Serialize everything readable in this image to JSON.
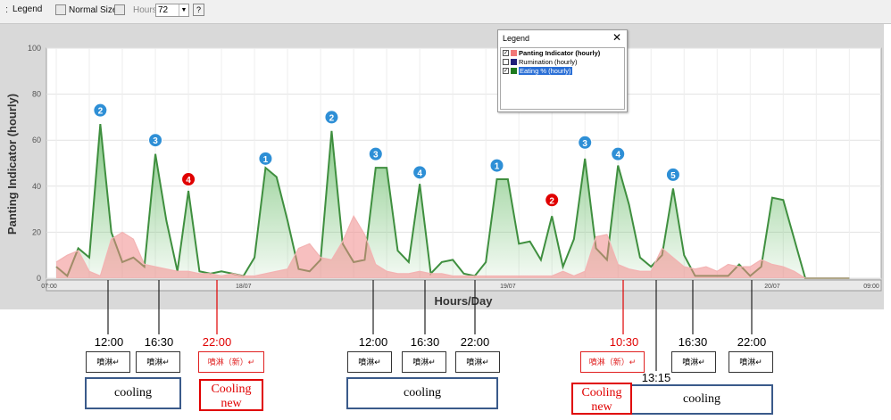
{
  "toolbar": {
    "grip": ":",
    "legend_label": "Legend",
    "normal_size_label": "Normal Size",
    "hours_label": "Hours",
    "hours_value": "72",
    "help_label": "?"
  },
  "legend": {
    "title": "Legend",
    "close": "✕",
    "items": [
      {
        "label": "Panting Indicator (hourly)",
        "checked": true,
        "color": "#f07878"
      },
      {
        "label": "Rumination (hourly)",
        "checked": false,
        "color": "#1f1f7a"
      },
      {
        "label": "Eating % (hourly)",
        "checked": true,
        "color": "#1f7a1f"
      }
    ]
  },
  "colors": {
    "green_line": "#3f8f3f",
    "green_fill": "#6fbf6f",
    "red_fill": "#f08a8a",
    "red_line": "#f3b3b3",
    "marker_blue": "#2e8fd6",
    "marker_red": "#e00000"
  },
  "chart_data": {
    "type": "area",
    "ylabel": "Panting Indicator (hourly)",
    "xlabel": "Hours/Day",
    "ylim": [
      0,
      100
    ],
    "yticks": [
      0,
      20,
      40,
      60,
      80,
      100
    ],
    "xticks": [
      {
        "hour": 0,
        "label": "07:00"
      },
      {
        "hour": 17,
        "label": "18/07"
      },
      {
        "hour": 41,
        "label": "19/07"
      },
      {
        "hour": 65,
        "label": "20/07"
      },
      {
        "hour": 74,
        "label": "09:00"
      }
    ],
    "x": [
      0,
      1,
      2,
      3,
      4,
      5,
      6,
      7,
      8,
      9,
      10,
      11,
      12,
      13,
      14,
      15,
      16,
      17,
      18,
      19,
      20,
      21,
      22,
      23,
      24,
      25,
      26,
      27,
      28,
      29,
      30,
      31,
      32,
      33,
      34,
      35,
      36,
      37,
      38,
      39,
      40,
      41,
      42,
      43,
      44,
      45,
      46,
      47,
      48,
      49,
      50,
      51,
      52,
      53,
      54,
      55,
      56,
      57,
      58,
      59,
      60,
      61,
      62,
      63,
      64,
      65,
      66,
      67,
      68,
      69,
      70,
      71,
      72
    ],
    "series": [
      {
        "name": "Eating % (hourly)",
        "values": [
          5,
          1,
          13,
          9,
          67,
          20,
          7,
          9,
          5,
          54,
          25,
          3,
          38,
          3,
          2,
          3,
          2,
          1,
          9,
          48,
          44,
          25,
          4,
          3,
          8,
          64,
          15,
          7,
          8,
          48,
          48,
          12,
          7,
          41,
          2,
          7,
          8,
          2,
          1,
          7,
          43,
          43,
          15,
          16,
          8,
          27,
          5,
          17,
          52,
          13,
          8,
          49,
          32,
          9,
          5,
          10,
          39,
          10,
          1,
          1,
          1,
          1,
          6,
          1,
          5,
          35,
          34,
          17,
          0,
          0,
          0,
          0,
          0
        ]
      },
      {
        "name": "Panting Indicator (hourly)",
        "values": [
          7,
          10,
          12,
          3,
          1,
          17,
          20,
          17,
          6,
          5,
          4,
          3,
          3,
          2,
          2,
          1,
          2,
          1,
          1,
          2,
          3,
          4,
          13,
          15,
          9,
          8,
          16,
          27,
          19,
          6,
          3,
          2,
          2,
          3,
          2,
          2,
          1,
          1,
          1,
          1,
          1,
          1,
          1,
          1,
          1,
          1,
          3,
          1,
          3,
          18,
          19,
          6,
          4,
          3,
          3,
          13,
          9,
          5,
          4,
          5,
          3,
          6,
          5,
          5,
          8,
          6,
          5,
          3,
          0,
          0,
          0,
          0,
          0
        ]
      }
    ],
    "markers": [
      {
        "hour": 4,
        "value": 73,
        "label": "2",
        "color": "blue"
      },
      {
        "hour": 9,
        "value": 60,
        "label": "3",
        "color": "blue"
      },
      {
        "hour": 12,
        "value": 43,
        "label": "4",
        "color": "red"
      },
      {
        "hour": 19,
        "value": 52,
        "label": "1",
        "color": "blue"
      },
      {
        "hour": 25,
        "value": 70,
        "label": "2",
        "color": "blue"
      },
      {
        "hour": 29,
        "value": 54,
        "label": "3",
        "color": "blue"
      },
      {
        "hour": 33,
        "value": 46,
        "label": "4",
        "color": "blue"
      },
      {
        "hour": 40,
        "value": 49,
        "label": "1",
        "color": "blue"
      },
      {
        "hour": 45,
        "value": 34,
        "label": "2",
        "color": "red"
      },
      {
        "hour": 48,
        "value": 59,
        "label": "3",
        "color": "blue"
      },
      {
        "hour": 51,
        "value": 54,
        "label": "4",
        "color": "blue"
      },
      {
        "hour": 56,
        "value": 45,
        "label": "5",
        "color": "blue"
      }
    ]
  },
  "annotations": {
    "times": [
      "12:00",
      "16:30",
      "22:00",
      "12:00",
      "16:30",
      "22:00",
      "10:30",
      "13:15",
      "16:30",
      "22:00"
    ],
    "spray": "噴淋↵",
    "spray_new": "噴淋（新）↵",
    "cooling": "cooling",
    "cooling_new": "Cooling new"
  }
}
